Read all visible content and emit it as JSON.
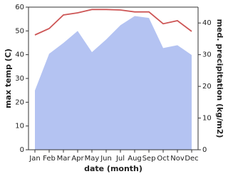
{
  "chart_data": {
    "type": "line_area",
    "x_label": "date (month)",
    "y_label": "max temp (C)",
    "y2_label": "med. precipitation (kg/m2)",
    "categories": [
      "Jan",
      "Feb",
      "Mar",
      "Apr",
      "May",
      "Jun",
      "Jul",
      "Aug",
      "Sep",
      "Oct",
      "Nov",
      "Dec"
    ],
    "series": [
      {
        "name": "max temp",
        "type": "line",
        "color": "#cd5656",
        "values": [
          48.3,
          51,
          56.7,
          57.6,
          59,
          59,
          58.8,
          58,
          58,
          53,
          54.3,
          49.8
        ]
      },
      {
        "name": "precipitation",
        "type": "area",
        "axis": "y2",
        "color": "#b4c3f2",
        "values": [
          18.7,
          30.3,
          33.7,
          37.5,
          30.8,
          34.8,
          39.3,
          42.2,
          41.6,
          32.1,
          33,
          29.9
        ]
      }
    ],
    "ylim": [
      0,
      60
    ],
    "yticks": [
      0,
      10,
      20,
      30,
      40,
      50,
      60
    ],
    "y2lim": [
      0,
      45
    ],
    "y2ticks": [
      0,
      10,
      20,
      30,
      40
    ]
  }
}
